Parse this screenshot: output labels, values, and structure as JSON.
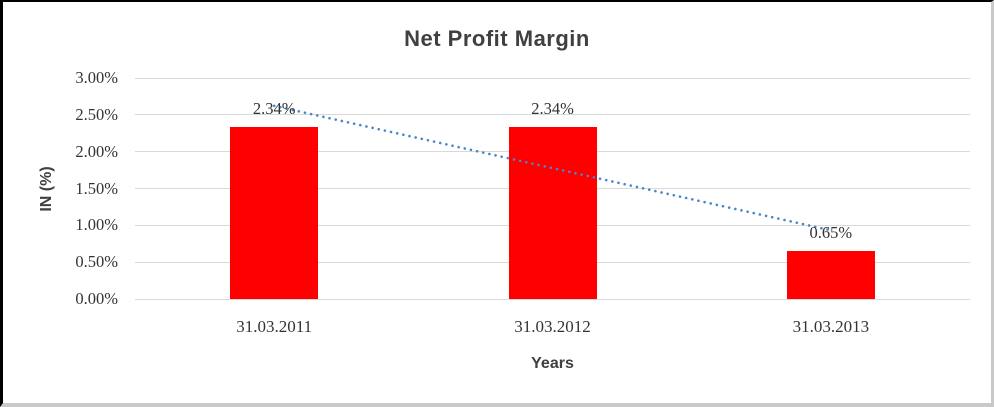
{
  "chart_data": {
    "type": "bar",
    "title": "Net Profit Margin",
    "xlabel": "Years",
    "ylabel": "IN (%)",
    "categories": [
      "31.03.2011",
      "31.03.2012",
      "31.03.2013"
    ],
    "values": [
      2.34,
      2.34,
      0.65
    ],
    "data_labels": [
      "2.34%",
      "2.34%",
      "0.65%"
    ],
    "yticks": [
      "0.00%",
      "0.50%",
      "1.00%",
      "1.50%",
      "2.00%",
      "2.50%",
      "3.00%"
    ],
    "ylim": [
      0,
      3
    ],
    "grid": true,
    "legend_position": "none",
    "bar_color": "#ff0000",
    "gridline_color": "#d9d9d9",
    "title_color": "#404040",
    "tick_label_color": "#333333",
    "trendline": {
      "type": "linear",
      "style": "dotted",
      "color": "#4a86c8"
    }
  }
}
